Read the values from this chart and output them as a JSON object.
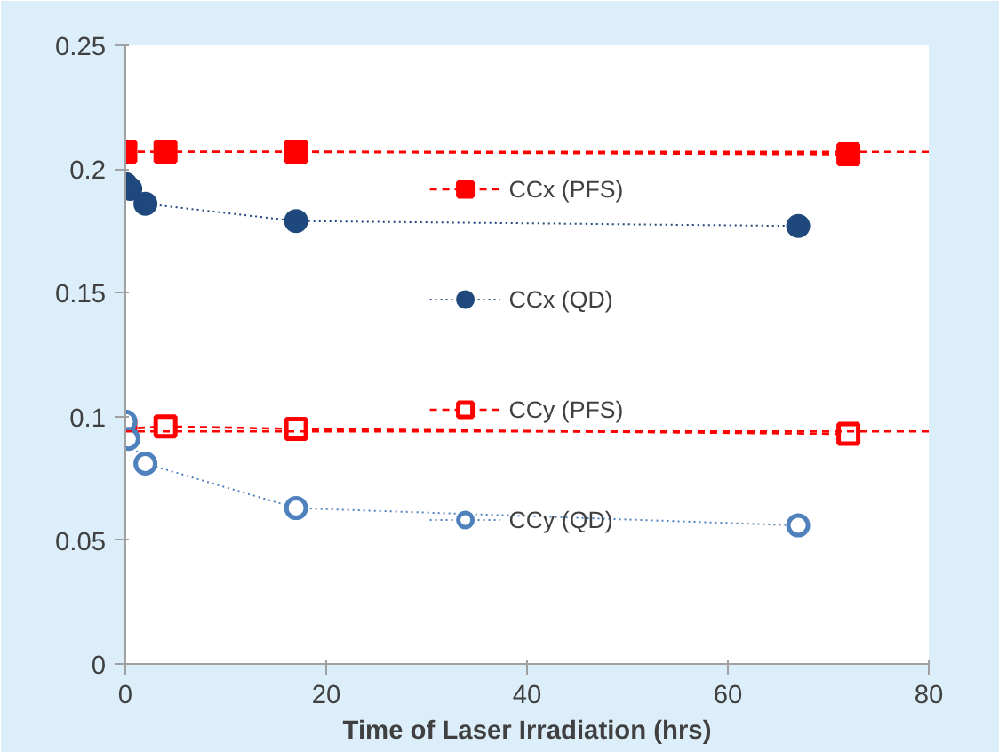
{
  "chart_data": {
    "type": "line",
    "xlabel": "Time of Laser Irradiation (hrs)",
    "xlim": [
      0,
      80
    ],
    "xticks": [
      0,
      20,
      40,
      60,
      80
    ],
    "ylim": [
      0,
      0.25
    ],
    "yticks": [
      0,
      0.05,
      0.1,
      0.15,
      0.2,
      0.25
    ],
    "grid": false,
    "legend": "center",
    "series": [
      {
        "name": "CCx (PFS)",
        "color": "#ff0000",
        "x": [
          0,
          4,
          17,
          72
        ],
        "values": [
          0.207,
          0.207,
          0.207,
          0.206
        ],
        "marker": "square",
        "line_style": "dashed"
      },
      {
        "name": "CCx (QD)",
        "color": "#1f497d",
        "x": [
          0,
          0.5,
          2,
          17,
          67
        ],
        "values": [
          0.194,
          0.192,
          0.186,
          0.179,
          0.177
        ],
        "marker": "circle",
        "line_style": "dotted"
      },
      {
        "name": "CCy (PFS)",
        "color": "#ff0000",
        "x": [
          0,
          4,
          17,
          72
        ],
        "values": [
          0.095,
          0.096,
          0.095,
          0.093
        ],
        "marker": "square",
        "line_style": "dashed"
      },
      {
        "name": "CCy (QD)",
        "color": "#4f81bd",
        "x": [
          0,
          0.3,
          2,
          17,
          67
        ],
        "values": [
          0.098,
          0.091,
          0.081,
          0.063,
          0.056
        ],
        "marker": "circle",
        "line_style": "dotted"
      },
      {
        "type": "line",
        "color": "#ff0000",
        "x": [
          0,
          80
        ],
        "values": [
          0.207,
          0.207
        ],
        "marker": "none",
        "line_style": "dashed"
      },
      {
        "type": "line",
        "color": "#ff0000",
        "x": [
          0,
          80
        ],
        "values": [
          0.094,
          0.094
        ],
        "marker": "none",
        "line_style": "dashed"
      }
    ]
  }
}
